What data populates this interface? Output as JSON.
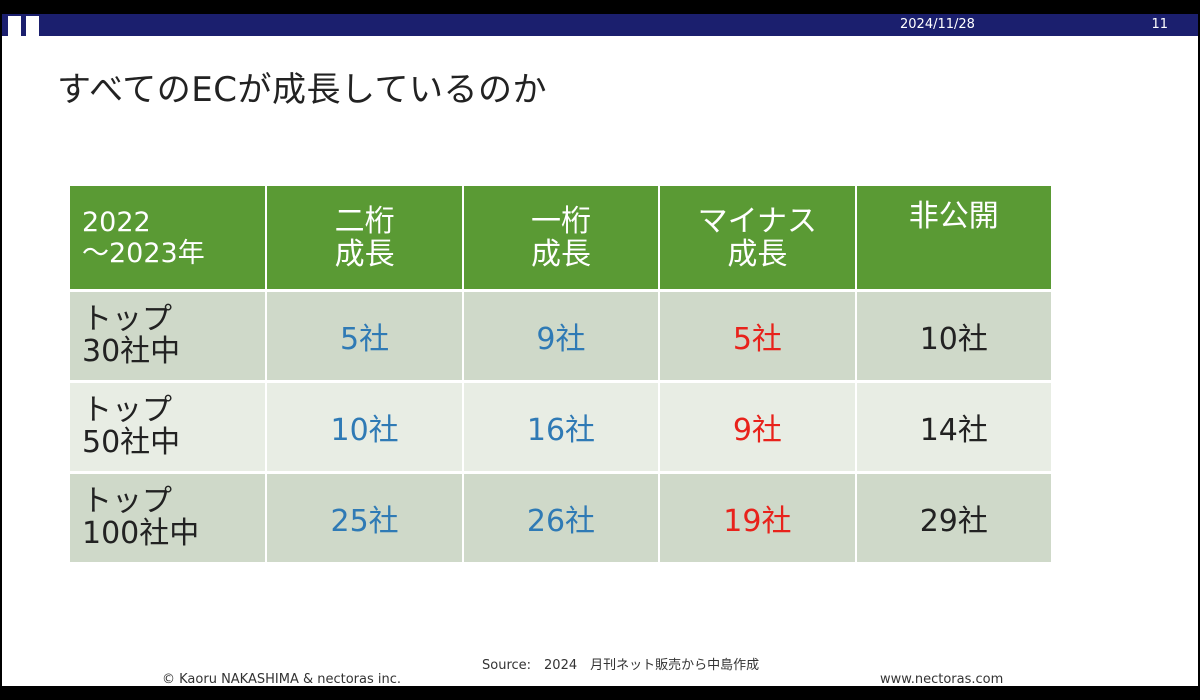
{
  "header": {
    "date": "2024/11/28",
    "page_number": "11",
    "bar_color": "#1b1f6e"
  },
  "title": "すべてのECが成長しているのか",
  "table": {
    "corner_line1": "2022",
    "corner_line2": "～2023年",
    "columns": [
      {
        "line1": "二桁",
        "line2": "成長"
      },
      {
        "line1": "一桁",
        "line2": "成長"
      },
      {
        "line1": "マイナス",
        "line2": "成長"
      },
      {
        "line1": "非公開",
        "line2": ""
      }
    ],
    "rows": [
      {
        "line1": "トップ",
        "line2": "30社中",
        "values": [
          "5社",
          "9社",
          "5社",
          "10社"
        ]
      },
      {
        "line1": "トップ",
        "line2": "50社中",
        "values": [
          "10社",
          "16社",
          "9社",
          "14社"
        ]
      },
      {
        "line1": "トップ",
        "line2": "100社中",
        "values": [
          "25社",
          "26社",
          "19社",
          "29社"
        ]
      }
    ],
    "colors": {
      "header": "#5a9a34",
      "blue": "#2f7ab5",
      "red": "#e8221b"
    }
  },
  "footer": {
    "source": "Source:　2024　月刊ネット販売から中島作成",
    "copyright": "© Kaoru NAKASHIMA & nectoras inc.",
    "url": "www.nectoras.com"
  }
}
